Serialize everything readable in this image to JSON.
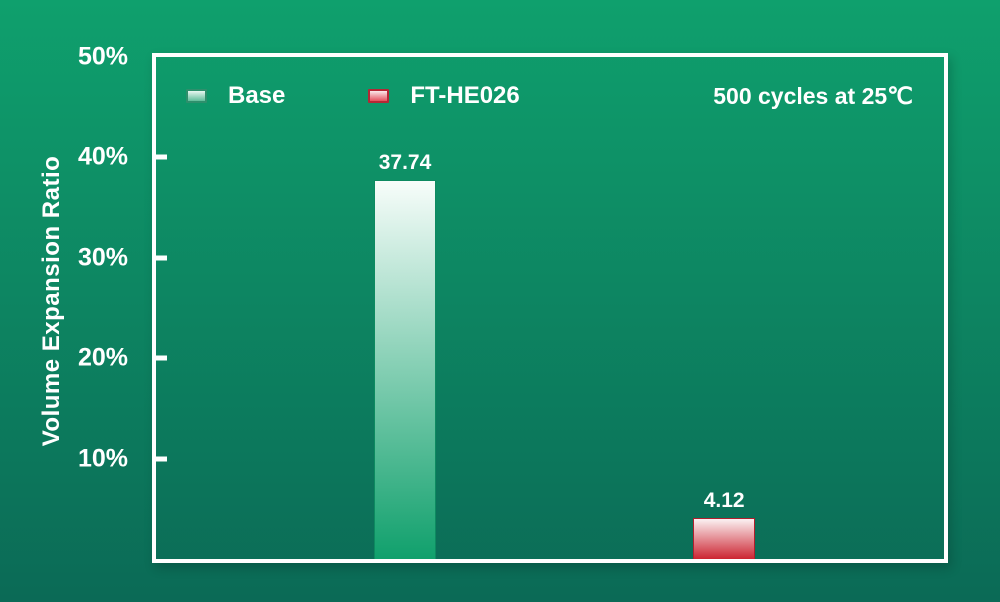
{
  "page": {
    "background_top": "#0FA06D",
    "background_bottom": "#0B6A56",
    "frame_color": "#FFFFFF",
    "text_color": "#FFFFFF"
  },
  "chart_data": {
    "type": "bar",
    "title": "",
    "ylabel": "Volume Expansion Ratio",
    "xlabel": "",
    "annotation": "500 cycles at 25℃",
    "ymin": 0,
    "ymax": 50,
    "grid": false,
    "legend_position": "top-inside-left",
    "yticks": [
      {
        "value": 50,
        "label": "50%"
      },
      {
        "value": 40,
        "label": "40%"
      },
      {
        "value": 30,
        "label": "30%"
      },
      {
        "value": 20,
        "label": "20%"
      },
      {
        "value": 10,
        "label": "10%"
      }
    ],
    "categories": [
      "Base",
      "FT-HE026"
    ],
    "series": [
      {
        "name": "Base",
        "value": 37.74,
        "value_label": "37.74",
        "bar_color_top": "#F7FDFA",
        "bar_color_bottom": "#10A06C",
        "bar_border": "#0D8A60",
        "swatch_color_top": "#E9F7F1",
        "swatch_color_bottom": "#5FBD9A",
        "swatch_border": "#2E8F6C"
      },
      {
        "name": "FT-HE026",
        "value": 4.12,
        "value_label": "4.12",
        "bar_color_top": "#FBF2F3",
        "bar_color_bottom": "#CC2431",
        "bar_border": "#B01F2D",
        "swatch_color_top": "#FAE9EB",
        "swatch_color_bottom": "#E4505D",
        "swatch_border": "#B52735"
      }
    ]
  }
}
